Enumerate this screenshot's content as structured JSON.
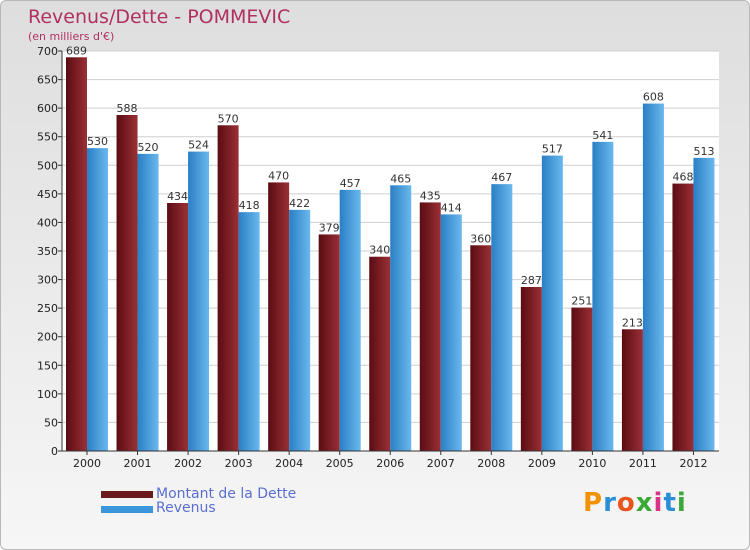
{
  "colors": {
    "dette": "#6b1a1e",
    "revenus": "#3b95d8",
    "title": "#b03060"
  },
  "chart_data": {
    "type": "bar",
    "title": "Revenus/Dette - POMMEVIC",
    "subtitle": "(en milliers d'€)",
    "categories": [
      "2000",
      "2001",
      "2002",
      "2003",
      "2004",
      "2005",
      "2006",
      "2007",
      "2008",
      "2009",
      "2010",
      "2011",
      "2012"
    ],
    "series": [
      {
        "name": "Montant de la Dette",
        "values": [
          689,
          588,
          434,
          570,
          470,
          379,
          340,
          435,
          360,
          287,
          251,
          213,
          468
        ]
      },
      {
        "name": "Revenus",
        "values": [
          530,
          520,
          524,
          418,
          422,
          457,
          465,
          414,
          467,
          517,
          541,
          608,
          513
        ]
      }
    ],
    "ylim": [
      0,
      700
    ],
    "yticks": [
      0,
      50,
      100,
      150,
      200,
      250,
      300,
      350,
      400,
      450,
      500,
      550,
      600,
      650,
      700
    ],
    "grid": true,
    "legend": "bottom-left"
  },
  "logo": {
    "letters": [
      "P",
      "r",
      "o",
      "x",
      "i",
      "t",
      "i"
    ],
    "colors": [
      "#f39200",
      "#2a8fd6",
      "#e8541c",
      "#3aa935",
      "#d9348a",
      "#2a8fd6",
      "#3aa935"
    ]
  }
}
